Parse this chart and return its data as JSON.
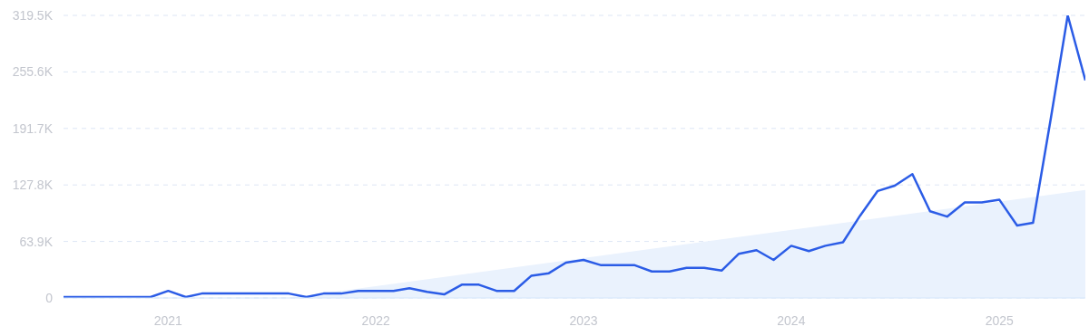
{
  "chart_data": {
    "type": "line",
    "x": [
      "2020-07",
      "2020-08",
      "2020-09",
      "2020-10",
      "2020-11",
      "2020-12",
      "2021-01",
      "2021-02",
      "2021-03",
      "2021-04",
      "2021-05",
      "2021-06",
      "2021-07",
      "2021-08",
      "2021-09",
      "2021-10",
      "2021-11",
      "2021-12",
      "2022-01",
      "2022-02",
      "2022-03",
      "2022-04",
      "2022-05",
      "2022-06",
      "2022-07",
      "2022-08",
      "2022-09",
      "2022-10",
      "2022-11",
      "2022-12",
      "2023-01",
      "2023-02",
      "2023-03",
      "2023-04",
      "2023-05",
      "2023-06",
      "2023-07",
      "2023-08",
      "2023-09",
      "2023-10",
      "2023-11",
      "2023-12",
      "2024-01",
      "2024-02",
      "2024-03",
      "2024-04",
      "2024-05",
      "2024-06",
      "2024-07",
      "2024-08",
      "2024-09",
      "2024-10",
      "2024-11",
      "2024-12",
      "2025-01",
      "2025-02",
      "2025-03",
      "2025-04",
      "2025-05",
      "2025-06"
    ],
    "series": [
      {
        "color": "#2b5ce6",
        "values": [
          1000,
          1000,
          1000,
          1000,
          1000,
          1000,
          8000,
          1000,
          5000,
          5000,
          5000,
          5000,
          5000,
          5000,
          1000,
          5000,
          5000,
          8000,
          8000,
          8000,
          11000,
          7000,
          4000,
          15000,
          15000,
          8000,
          8000,
          25000,
          28000,
          40000,
          43000,
          37000,
          37000,
          37000,
          30000,
          30000,
          34000,
          34000,
          31000,
          50000,
          54000,
          43000,
          59000,
          53000,
          59000,
          63000,
          93000,
          121000,
          127000,
          140000,
          98000,
          92000,
          108000,
          108000,
          111000,
          82000,
          85000,
          202000,
          319500,
          246000
        ]
      },
      {
        "type": "area",
        "color": "#eaf2fd",
        "x": [
          "2021-08",
          "2025-06"
        ],
        "values": [
          0,
          122000
        ]
      }
    ],
    "xlim": [
      "2020-07",
      "2025-06"
    ],
    "xticks": [
      "2021",
      "2022",
      "2023",
      "2024",
      "2025"
    ],
    "ylim": [
      0,
      319500
    ],
    "yticks": [
      0,
      {
        "value": 63900,
        "label": "63.9K"
      },
      {
        "value": 127800,
        "label": "127.8K"
      },
      {
        "value": 191700,
        "label": "191.7K"
      },
      {
        "value": 255600,
        "label": "255.6K"
      },
      {
        "value": 319500,
        "label": "319.5K"
      }
    ],
    "grid": "y",
    "marker": "none",
    "line_style": "solid"
  }
}
